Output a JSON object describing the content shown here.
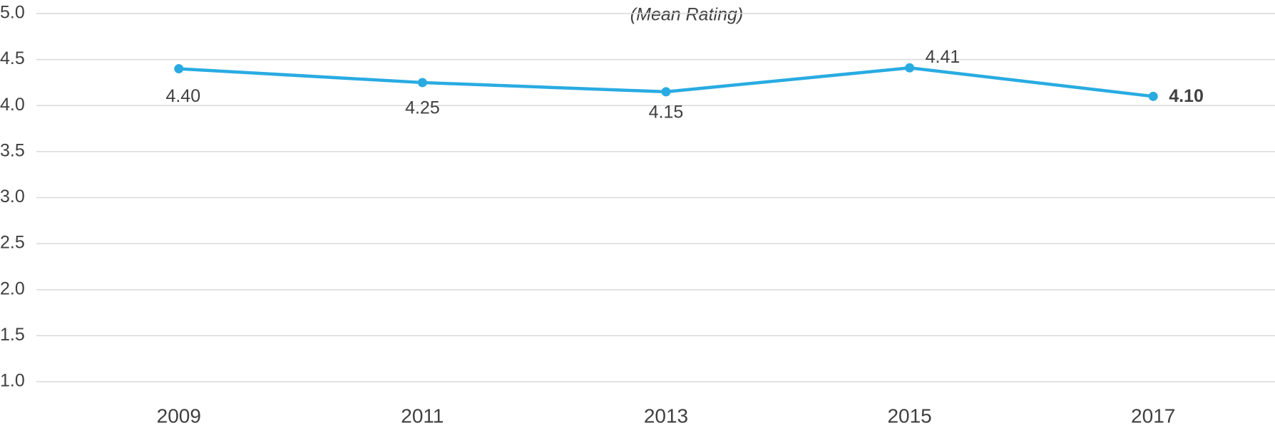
{
  "chart_data": {
    "type": "line",
    "subtitle": "(Mean Rating)",
    "categories": [
      "2009",
      "2011",
      "2013",
      "2015",
      "2017"
    ],
    "series": [
      {
        "name": null,
        "color": "#29abe2",
        "values": [
          4.4,
          4.25,
          4.15,
          4.41,
          4.1
        ],
        "value_labels": [
          "4.40",
          "4.25",
          "4.15",
          "4.41",
          "4.10"
        ]
      }
    ],
    "ylim": [
      1,
      5
    ],
    "yticks": [
      {
        "value": 1,
        "label": "1.0"
      },
      {
        "value": 1.5,
        "label": "1.5"
      },
      {
        "value": 2,
        "label": "2.0"
      },
      {
        "value": 2.5,
        "label": "2.5"
      },
      {
        "value": 3,
        "label": "3.0"
      },
      {
        "value": 3.5,
        "label": "3.5"
      },
      {
        "value": 4,
        "label": "4.0"
      },
      {
        "value": 4.5,
        "label": "4.5"
      },
      {
        "value": 5,
        "label": "5.0"
      }
    ],
    "grid": true
  }
}
